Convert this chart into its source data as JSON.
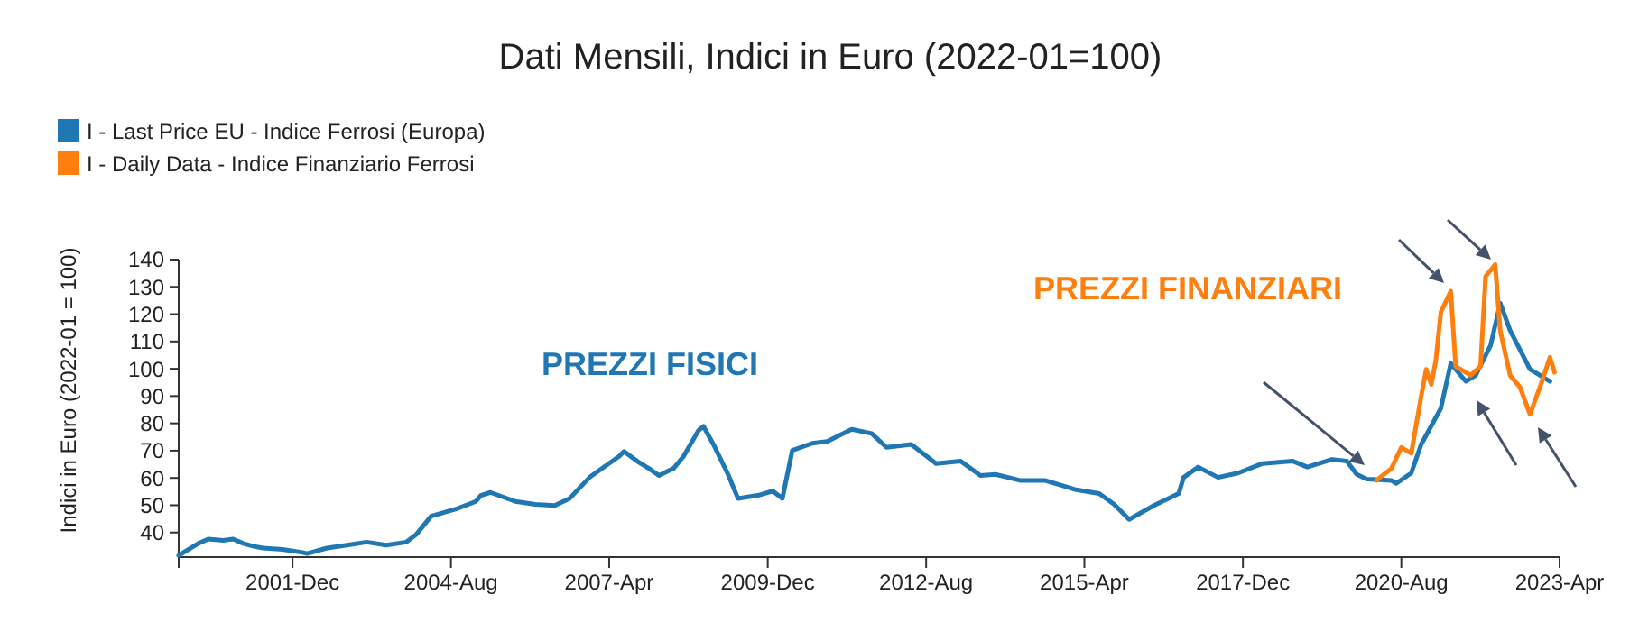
{
  "chart_data": {
    "type": "line",
    "title": "Dati Mensili, Indici in Euro (2022-01=100)",
    "ylabel": "Indici in Euro (2022-01 = 100)",
    "legend": "top left",
    "marker": "none",
    "line_style": "solid",
    "grid": false,
    "xlim": [
      "2000-01",
      "2023-04"
    ],
    "ylim": [
      31,
      140
    ],
    "yticks": [
      40,
      50,
      60,
      70,
      80,
      90,
      100,
      110,
      120,
      130,
      140
    ],
    "xticks": [
      {
        "value": "2001-12",
        "label": "2001-Dec"
      },
      {
        "value": "2004-08",
        "label": "2004-Aug"
      },
      {
        "value": "2007-04",
        "label": "2007-Apr"
      },
      {
        "value": "2009-12",
        "label": "2009-Dec"
      },
      {
        "value": "2012-08",
        "label": "2012-Aug"
      },
      {
        "value": "2015-04",
        "label": "2015-Apr"
      },
      {
        "value": "2017-12",
        "label": "2017-Dec"
      },
      {
        "value": "2020-08",
        "label": "2020-Aug"
      },
      {
        "value": "2023-04",
        "label": "2023-Apr"
      }
    ],
    "annotations": [
      "PREZZI FISICI",
      "PREZZI FINANZIARI"
    ],
    "series": [
      {
        "name": "I - Last Price EU - Indice Ferrosi (Europa)",
        "color": "#1f77b4",
        "x": [
          "2000-01",
          "2000-05",
          "2000-07",
          "2000-10",
          "2000-12",
          "2001-02",
          "2001-04",
          "2001-06",
          "2001-10",
          "2002-02",
          "2002-03",
          "2002-07",
          "2002-11",
          "2003-03",
          "2003-07",
          "2003-11",
          "2004-01",
          "2004-04",
          "2004-09",
          "2005-01",
          "2005-02",
          "2005-04",
          "2005-09",
          "2006-01",
          "2006-05",
          "2006-08",
          "2006-12",
          "2007-02",
          "2007-06",
          "2007-07",
          "2007-10",
          "2007-12",
          "2008-02",
          "2008-05",
          "2008-07",
          "2008-10",
          "2008-11",
          "2009-01",
          "2009-04",
          "2009-06",
          "2009-10",
          "2010-01",
          "2010-03",
          "2010-05",
          "2010-09",
          "2010-12",
          "2011-05",
          "2011-09",
          "2011-12",
          "2012-05",
          "2012-10",
          "2013-03",
          "2013-07",
          "2013-10",
          "2014-03",
          "2014-08",
          "2015-02",
          "2015-07",
          "2015-10",
          "2016-01",
          "2016-06",
          "2016-11",
          "2016-12",
          "2017-03",
          "2017-07",
          "2017-11",
          "2018-04",
          "2018-10",
          "2019-01",
          "2019-06",
          "2019-09",
          "2019-11",
          "2020-01",
          "2020-06",
          "2020-07",
          "2020-10",
          "2020-12",
          "2021-04",
          "2021-06",
          "2021-09",
          "2021-11",
          "2022-02",
          "2022-04",
          "2022-06",
          "2022-10",
          "2023-02"
        ],
        "values": [
          31.6,
          36,
          37.6,
          37.1,
          37.6,
          36,
          35,
          34.3,
          33.8,
          32.7,
          32.3,
          34.3,
          35.4,
          36.5,
          35.4,
          36.5,
          39.3,
          46,
          48.6,
          51.4,
          53.6,
          54.7,
          51.4,
          50.3,
          49.9,
          52.5,
          60.2,
          62.9,
          67.9,
          69.7,
          65.7,
          63.5,
          60.9,
          63.5,
          67.9,
          77.4,
          78.9,
          72.3,
          61.3,
          52.5,
          53.6,
          55.2,
          52.5,
          70.1,
          72.7,
          73.4,
          77.8,
          76.3,
          71.2,
          72.3,
          65.3,
          66.2,
          60.9,
          61.3,
          59.1,
          59.1,
          55.8,
          54.3,
          50.3,
          44.8,
          49.9,
          54.3,
          60.2,
          64,
          60.2,
          61.8,
          65.3,
          66.2,
          64,
          66.8,
          66.2,
          61.3,
          59.6,
          59.1,
          58,
          61.8,
          72.3,
          85.5,
          102,
          95.4,
          97.6,
          108.6,
          124,
          114,
          99.8,
          95.4
        ]
      },
      {
        "name": "I - Daily Data - Indice Finanziario Ferrosi",
        "color": "#ff7f0e",
        "x": [
          "2020-03",
          "2020-06",
          "2020-08",
          "2020-10",
          "2020-12",
          "2021-01",
          "2021-02",
          "2021-03",
          "2021-04",
          "2021-06",
          "2021-07",
          "2021-10",
          "2021-12",
          "2022-01",
          "2022-03",
          "2022-04",
          "2022-06",
          "2022-08",
          "2022-10",
          "2022-12",
          "2023-02",
          "2023-03"
        ],
        "values": [
          59.1,
          63.5,
          71.2,
          69,
          89.9,
          99.8,
          94.3,
          103,
          120.7,
          128.4,
          100.9,
          97.6,
          100.9,
          133.8,
          138.2,
          114,
          97.6,
          93.2,
          83.3,
          93.2,
          104.2,
          98.7
        ]
      }
    ]
  }
}
